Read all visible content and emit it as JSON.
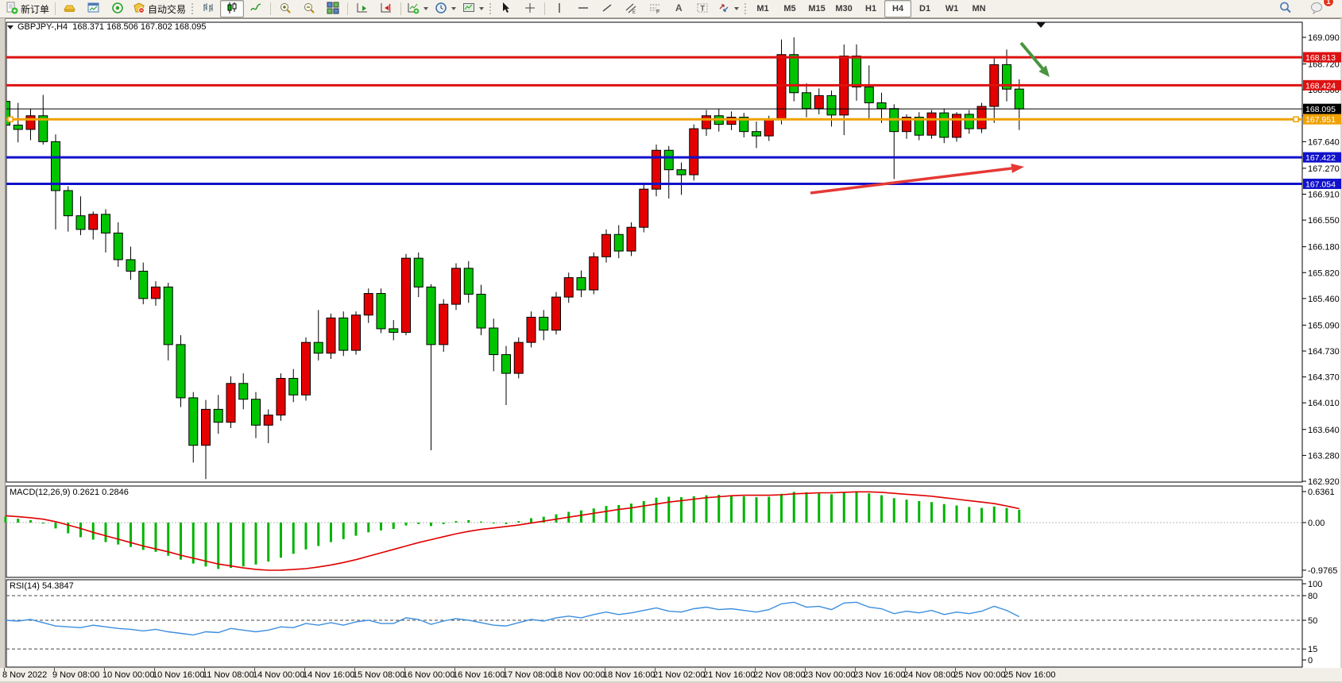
{
  "toolbar": {
    "new_order_label": "新订单",
    "autotrade_label": "自动交易",
    "timeframes": [
      "M1",
      "M5",
      "M15",
      "M30",
      "H1",
      "H4",
      "D1",
      "W1",
      "MN"
    ],
    "active_timeframe": "H4",
    "notification_badge": "1"
  },
  "chart": {
    "title_line": "GBPJPY-,H4  168.371 168.506 167.802 168.095",
    "symbol": "GBPJPY-",
    "timeframe": "H4",
    "ohlc": {
      "open": "168.371",
      "high": "168.506",
      "low": "167.802",
      "close": "168.095"
    }
  },
  "macd_panel": {
    "label": "MACD(12,26,9) 0.2621 0.2846"
  },
  "rsi_panel": {
    "label": "RSI(14) 54.3847"
  },
  "chart_data": {
    "type": "candlestick",
    "symbol": "GBPJPY-",
    "period": "H4",
    "bull_color": "#e40000",
    "bear_color": "#00c400",
    "ylim": [
      162.91,
      169.3
    ],
    "y_ticks": [
      "169.090",
      "168.720",
      "168.360",
      "168.000",
      "167.640",
      "167.270",
      "166.910",
      "166.550",
      "166.180",
      "165.820",
      "165.460",
      "165.090",
      "164.730",
      "164.370",
      "164.010",
      "163.640",
      "163.280",
      "162.920"
    ],
    "x_labels": [
      "8 Nov 2022",
      "9 Nov 08:00",
      "10 Nov 00:00",
      "10 Nov 16:00",
      "11 Nov 08:00",
      "14 Nov 00:00",
      "14 Nov 16:00",
      "15 Nov 08:00",
      "16 Nov 00:00",
      "16 Nov 16:00",
      "17 Nov 08:00",
      "18 Nov 00:00",
      "18 Nov 16:00",
      "21 Nov 02:00",
      "21 Nov 16:00",
      "22 Nov 08:00",
      "23 Nov 00:00",
      "23 Nov 16:00",
      "24 Nov 08:00",
      "25 Nov 00:00",
      "25 Nov 16:00"
    ],
    "candles": [
      [
        168.2,
        168.32,
        167.7,
        167.87
      ],
      [
        167.87,
        168.18,
        167.63,
        167.81
      ],
      [
        167.81,
        168.1,
        167.66,
        168.0
      ],
      [
        168.0,
        168.29,
        167.6,
        167.64
      ],
      [
        167.64,
        167.74,
        166.42,
        166.96
      ],
      [
        166.96,
        167.02,
        166.39,
        166.61
      ],
      [
        166.61,
        166.88,
        166.34,
        166.42
      ],
      [
        166.42,
        166.67,
        166.28,
        166.63
      ],
      [
        166.63,
        166.7,
        166.1,
        166.37
      ],
      [
        166.37,
        166.52,
        165.9,
        166.0
      ],
      [
        166.0,
        166.18,
        165.72,
        165.84
      ],
      [
        165.84,
        165.96,
        165.38,
        165.46
      ],
      [
        165.46,
        165.7,
        165.36,
        165.62
      ],
      [
        165.62,
        165.68,
        164.6,
        164.82
      ],
      [
        164.82,
        164.95,
        163.95,
        164.08
      ],
      [
        164.08,
        164.16,
        163.18,
        163.42
      ],
      [
        163.42,
        164.05,
        162.95,
        163.92
      ],
      [
        163.92,
        164.12,
        163.58,
        163.74
      ],
      [
        163.74,
        164.38,
        163.66,
        164.28
      ],
      [
        164.28,
        164.42,
        163.92,
        164.06
      ],
      [
        164.06,
        164.16,
        163.52,
        163.7
      ],
      [
        163.7,
        163.92,
        163.45,
        163.84
      ],
      [
        163.84,
        164.42,
        163.76,
        164.35
      ],
      [
        164.35,
        164.48,
        164.02,
        164.12
      ],
      [
        164.12,
        164.92,
        164.04,
        164.85
      ],
      [
        164.85,
        165.3,
        164.6,
        164.7
      ],
      [
        164.7,
        165.25,
        164.62,
        165.19
      ],
      [
        165.19,
        165.28,
        164.66,
        164.74
      ],
      [
        164.74,
        165.28,
        164.68,
        165.23
      ],
      [
        165.23,
        165.6,
        165.12,
        165.53
      ],
      [
        165.53,
        165.6,
        164.98,
        165.04
      ],
      [
        165.04,
        165.16,
        164.88,
        164.99
      ],
      [
        164.99,
        166.08,
        164.95,
        166.02
      ],
      [
        166.02,
        166.1,
        165.48,
        165.62
      ],
      [
        165.62,
        165.66,
        163.35,
        164.82
      ],
      [
        164.82,
        165.45,
        164.72,
        165.38
      ],
      [
        165.38,
        165.95,
        165.3,
        165.88
      ],
      [
        165.88,
        165.98,
        165.4,
        165.52
      ],
      [
        165.52,
        165.65,
        164.95,
        165.05
      ],
      [
        165.05,
        165.18,
        164.45,
        164.68
      ],
      [
        164.68,
        164.8,
        163.98,
        164.42
      ],
      [
        164.42,
        164.92,
        164.35,
        164.85
      ],
      [
        164.85,
        165.28,
        164.78,
        165.2
      ],
      [
        165.2,
        165.3,
        164.88,
        165.02
      ],
      [
        165.02,
        165.55,
        164.96,
        165.48
      ],
      [
        165.48,
        165.82,
        165.4,
        165.75
      ],
      [
        165.75,
        165.85,
        165.48,
        165.58
      ],
      [
        165.58,
        166.1,
        165.52,
        166.04
      ],
      [
        166.04,
        166.42,
        165.96,
        166.35
      ],
      [
        166.35,
        166.48,
        166.02,
        166.12
      ],
      [
        166.12,
        166.52,
        166.05,
        166.45
      ],
      [
        166.45,
        167.05,
        166.38,
        166.98
      ],
      [
        166.98,
        167.6,
        166.88,
        167.52
      ],
      [
        167.52,
        167.58,
        166.85,
        167.25
      ],
      [
        167.25,
        167.35,
        166.9,
        167.18
      ],
      [
        167.18,
        167.88,
        167.1,
        167.82
      ],
      [
        167.82,
        168.08,
        167.72,
        168.0
      ],
      [
        168.0,
        168.1,
        167.78,
        167.88
      ],
      [
        167.88,
        168.06,
        167.8,
        167.98
      ],
      [
        167.98,
        168.04,
        167.7,
        167.78
      ],
      [
        167.78,
        167.92,
        167.55,
        167.72
      ],
      [
        167.72,
        168.0,
        167.65,
        167.95
      ],
      [
        167.95,
        169.06,
        167.88,
        168.85
      ],
      [
        168.85,
        169.09,
        168.2,
        168.32
      ],
      [
        168.32,
        168.45,
        167.98,
        168.1
      ],
      [
        168.1,
        168.38,
        168.02,
        168.28
      ],
      [
        168.28,
        168.35,
        167.85,
        168.01
      ],
      [
        168.01,
        168.99,
        167.73,
        168.83
      ],
      [
        168.83,
        168.99,
        168.21,
        168.4
      ],
      [
        168.4,
        168.7,
        167.95,
        168.18
      ],
      [
        168.18,
        168.32,
        167.9,
        168.1
      ],
      [
        168.1,
        168.16,
        167.12,
        167.78
      ],
      [
        167.78,
        168.02,
        167.68,
        167.98
      ],
      [
        167.98,
        168.05,
        167.66,
        167.73
      ],
      [
        167.73,
        168.08,
        167.68,
        168.04
      ],
      [
        168.04,
        168.1,
        167.62,
        167.7
      ],
      [
        167.7,
        168.05,
        167.64,
        168.02
      ],
      [
        168.02,
        168.08,
        167.75,
        167.82
      ],
      [
        167.82,
        168.18,
        167.76,
        168.13
      ],
      [
        168.13,
        168.82,
        167.9,
        168.71
      ],
      [
        168.71,
        168.92,
        168.2,
        168.37
      ],
      [
        168.371,
        168.506,
        167.802,
        168.095
      ]
    ],
    "horizontal_lines": [
      {
        "price": 168.813,
        "color": "#dd1111",
        "width": 3,
        "handles": false
      },
      {
        "price": 168.424,
        "color": "#dd1111",
        "width": 3,
        "handles": false
      },
      {
        "price": 168.095,
        "color": "#000000",
        "width": 1,
        "handles": false
      },
      {
        "price": 167.951,
        "color": "#efa100",
        "width": 3,
        "handles": true
      },
      {
        "price": 167.422,
        "color": "#1111cc",
        "width": 3,
        "handles": false
      },
      {
        "price": 167.054,
        "color": "#1111cc",
        "width": 3,
        "handles": false
      }
    ],
    "indicators": [
      {
        "name": "MACD",
        "params": "12,26,9",
        "value": 0.2621,
        "signal_value": 0.2846,
        "axis_ticks": [
          "0.6361",
          "0.00",
          "-0.9765"
        ],
        "histogram_color": "#00b400",
        "signal_color": "#e00000",
        "histogram": [
          0.12,
          0.08,
          0.05,
          -0.02,
          -0.12,
          -0.22,
          -0.3,
          -0.35,
          -0.4,
          -0.45,
          -0.5,
          -0.56,
          -0.6,
          -0.68,
          -0.76,
          -0.84,
          -0.9,
          -0.95,
          -0.93,
          -0.9,
          -0.86,
          -0.8,
          -0.72,
          -0.64,
          -0.55,
          -0.48,
          -0.4,
          -0.34,
          -0.27,
          -0.2,
          -0.16,
          -0.13,
          -0.06,
          -0.03,
          -0.07,
          -0.03,
          0.03,
          0.05,
          0.02,
          -0.01,
          -0.03,
          0.03,
          0.09,
          0.12,
          0.17,
          0.22,
          0.25,
          0.29,
          0.34,
          0.36,
          0.39,
          0.44,
          0.51,
          0.53,
          0.52,
          0.54,
          0.56,
          0.57,
          0.56,
          0.54,
          0.52,
          0.53,
          0.59,
          0.63,
          0.62,
          0.6,
          0.58,
          0.62,
          0.63,
          0.6,
          0.56,
          0.5,
          0.47,
          0.44,
          0.42,
          0.38,
          0.35,
          0.32,
          0.3,
          0.33,
          0.3,
          0.2621
        ],
        "signal_line": [
          0.14,
          0.12,
          0.1,
          0.07,
          0.02,
          -0.05,
          -0.12,
          -0.2,
          -0.27,
          -0.34,
          -0.41,
          -0.48,
          -0.54,
          -0.6,
          -0.67,
          -0.73,
          -0.79,
          -0.85,
          -0.89,
          -0.93,
          -0.96,
          -0.977,
          -0.975,
          -0.963,
          -0.945,
          -0.91,
          -0.87,
          -0.82,
          -0.76,
          -0.69,
          -0.62,
          -0.55,
          -0.48,
          -0.41,
          -0.35,
          -0.29,
          -0.23,
          -0.18,
          -0.14,
          -0.11,
          -0.08,
          -0.05,
          -0.01,
          0.03,
          0.07,
          0.11,
          0.15,
          0.19,
          0.23,
          0.27,
          0.3,
          0.34,
          0.38,
          0.42,
          0.45,
          0.48,
          0.51,
          0.53,
          0.55,
          0.56,
          0.56,
          0.56,
          0.57,
          0.59,
          0.6,
          0.61,
          0.61,
          0.62,
          0.63,
          0.63,
          0.62,
          0.6,
          0.58,
          0.56,
          0.54,
          0.51,
          0.48,
          0.45,
          0.42,
          0.39,
          0.34,
          0.2846
        ]
      },
      {
        "name": "RSI",
        "params": "14",
        "value": 54.3847,
        "axis_ticks": [
          "100",
          "80",
          "50",
          "15",
          "0"
        ],
        "levels": [
          80,
          50,
          15
        ],
        "line_color": "#3c8ede",
        "values": [
          50,
          49,
          51,
          47,
          43,
          42,
          41,
          44,
          42,
          40,
          39,
          37,
          39,
          36,
          34,
          32,
          36,
          35,
          40,
          38,
          36,
          38,
          42,
          41,
          46,
          44,
          47,
          44,
          48,
          50,
          46,
          46,
          53,
          51,
          45,
          49,
          52,
          50,
          47,
          44,
          43,
          47,
          51,
          49,
          53,
          55,
          53,
          57,
          60,
          57,
          59,
          62,
          65,
          61,
          60,
          64,
          66,
          63,
          64,
          62,
          60,
          63,
          70,
          72,
          66,
          67,
          63,
          71,
          72,
          66,
          64,
          58,
          61,
          59,
          62,
          57,
          60,
          58,
          61,
          67,
          62,
          54.38
        ]
      }
    ],
    "annotations": {
      "red_arrow": {
        "from": [
          1020,
          243
        ],
        "to": [
          1289,
          210
        ],
        "color": "#e53935"
      },
      "green_arrow": {
        "from": [
          1285,
          54
        ],
        "to": [
          1321,
          97
        ],
        "color": "#4a9440"
      },
      "shift_marker": {
        "x": 1310,
        "y": 28,
        "color": "#111111"
      }
    }
  }
}
